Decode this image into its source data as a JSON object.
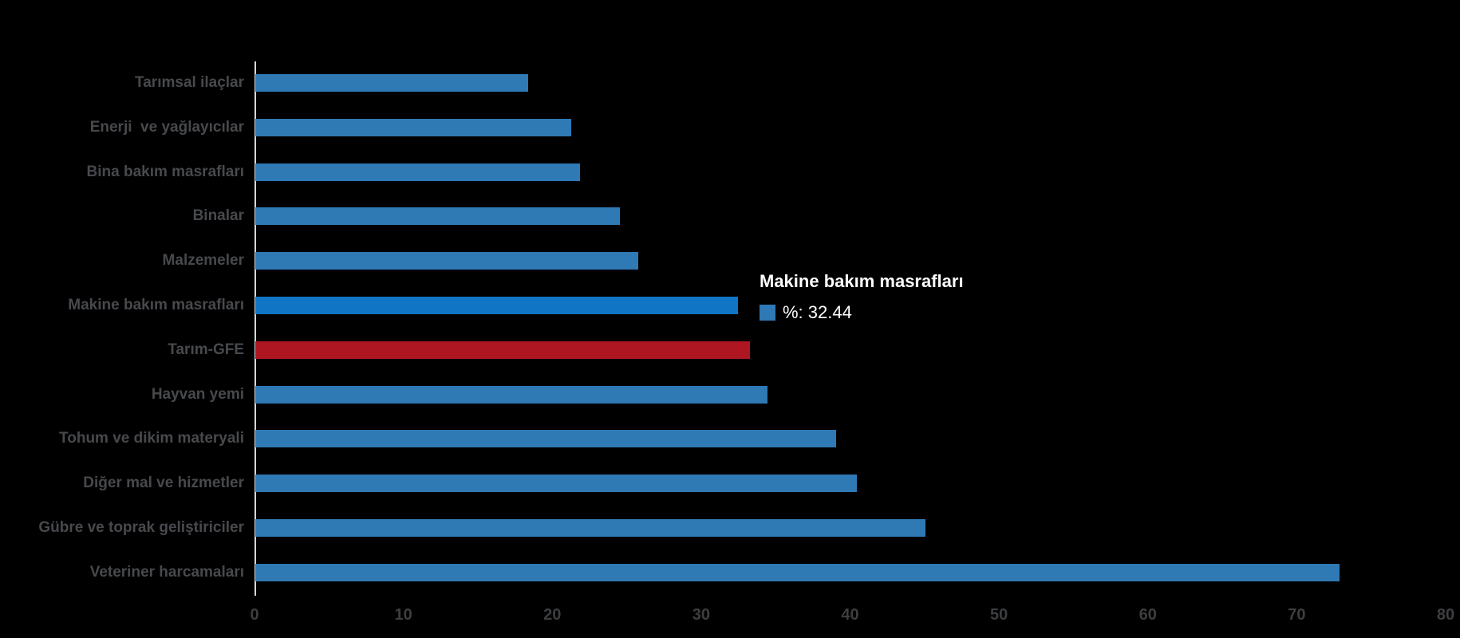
{
  "chart_data": {
    "type": "bar",
    "orientation": "horizontal",
    "title": "",
    "xlabel": "",
    "ylabel": "",
    "unit": "%",
    "xlim": [
      0,
      80
    ],
    "xticks": [
      0,
      10,
      20,
      30,
      40,
      50,
      60,
      70,
      80
    ],
    "grid": false,
    "legend_position": "none",
    "categories": [
      "Tarımsal ilaçlar",
      "Enerji  ve yağlayıcılar",
      "Bina bakım masrafları",
      "Binalar",
      "Malzemeler",
      "Makine bakım masrafları",
      "Tarım-GFE",
      "Hayvan yemi",
      "Tohum ve dikim materyali",
      "Diğer mal ve hizmetler",
      "Gübre ve toprak geliştiriciler",
      "Veteriner harcamaları"
    ],
    "values": [
      18.3,
      21.2,
      21.8,
      24.5,
      25.7,
      32.44,
      33.2,
      34.4,
      39.0,
      40.4,
      45.0,
      72.8
    ],
    "bar_roles": [
      "normal",
      "normal",
      "normal",
      "normal",
      "normal",
      "highlight",
      "emphasis",
      "normal",
      "normal",
      "normal",
      "normal",
      "normal"
    ]
  },
  "tooltip": {
    "title": "Makine bakım masrafları",
    "value_label": "%: 32.44"
  },
  "colors": {
    "background": "#000000",
    "bar_normal": "#2F79B5",
    "bar_highlight": "#1175C6",
    "bar_emphasis": "#AE1622",
    "axis_line": "#CDD9E1",
    "category_label": "#47494D",
    "tick_label": "#3D3E40",
    "tooltip_text": "#FFFFFF",
    "tooltip_swatch": "#2F79B5"
  }
}
